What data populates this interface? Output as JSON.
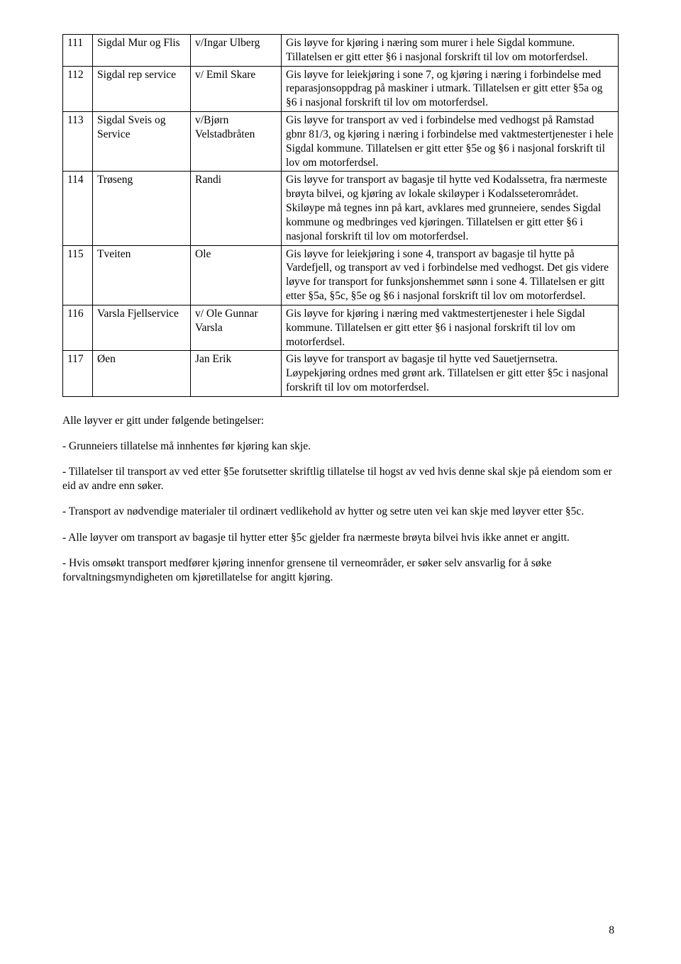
{
  "page_number": "8",
  "table": {
    "rows": [
      {
        "n": "111",
        "applicant": "Sigdal Mur og Flis",
        "rep": "v/Ingar Ulberg",
        "desc": "Gis løyve for kjøring i næring som murer i hele Sigdal kommune. Tillatelsen er gitt etter §6 i nasjonal forskrift til lov om motorferdsel."
      },
      {
        "n": "112",
        "applicant": "Sigdal rep service",
        "rep": "v/ Emil Skare",
        "desc": "Gis løyve for leiekjøring i sone 7, og kjøring i næring i forbindelse med reparasjonsoppdrag på maskiner i utmark. Tillatelsen er gitt etter §5a og §6 i nasjonal forskrift til lov om motorferdsel."
      },
      {
        "n": "113",
        "applicant": "Sigdal Sveis og Service",
        "rep": "v/Bjørn Velstadbråten",
        "desc": "Gis løyve for transport av ved i forbindelse med vedhogst på Ramstad gbnr 81/3, og kjøring i næring i forbindelse med vaktmestertjenester i hele Sigdal kommune. Tillatelsen er gitt etter §5e og §6 i nasjonal forskrift til lov om motorferdsel."
      },
      {
        "n": "114",
        "applicant": "Trøseng",
        "rep": "Randi",
        "desc": "Gis løyve for transport av bagasje til hytte ved Kodalssetra, fra nærmeste brøyta bilvei, og kjøring av lokale skiløyper i Kodalsseterområdet. Skiløype må tegnes inn på kart, avklares med grunneiere, sendes Sigdal kommune og medbringes ved kjøringen. Tillatelsen er gitt etter §6 i nasjonal forskrift til lov om motorferdsel."
      },
      {
        "n": "115",
        "applicant": "Tveiten",
        "rep": "Ole",
        "desc": "Gis løyve for leiekjøring i sone 4, transport av bagasje til hytte på Vardefjell, og transport av ved i forbindelse med vedhogst. Det gis videre løyve for transport for funksjonshemmet sønn i sone 4. Tillatelsen er gitt etter §5a, §5c, §5e og §6 i nasjonal forskrift til lov om motorferdsel."
      },
      {
        "n": "116",
        "applicant": "Varsla Fjellservice",
        "rep": "v/ Ole Gunnar Varsla",
        "desc": "Gis løyve for kjøring i næring med vaktmestertjenester i hele Sigdal kommune. Tillatelsen er gitt etter §6 i nasjonal forskrift til lov om motorferdsel."
      },
      {
        "n": "117",
        "applicant": "Øen",
        "rep": "Jan Erik",
        "desc": "Gis løyve for transport av bagasje til hytte ved Sauetjernsetra. Løypekjøring ordnes med grønt ark. Tillatelsen er gitt etter §5c i nasjonal forskrift til lov om motorferdsel."
      }
    ]
  },
  "body": {
    "intro": "Alle løyver er gitt under følgende betingelser:",
    "items": [
      "- Grunneiers tillatelse må innhentes før kjøring kan skje.",
      "- Tillatelser til transport av ved etter §5e forutsetter skriftlig tillatelse til hogst av ved hvis denne skal skje på eiendom som er eid av andre enn søker.",
      "- Transport av nødvendige materialer til ordinært vedlikehold av hytter og setre uten vei kan skje med løyver etter §5c.",
      "- Alle løyver om transport av bagasje til hytter etter §5c gjelder fra nærmeste brøyta bilvei hvis ikke annet er angitt.",
      "- Hvis omsøkt transport medfører kjøring innenfor grensene til verneområder, er søker selv ansvarlig for å søke forvaltningsmyndigheten om kjøretillatelse for angitt kjøring."
    ]
  }
}
